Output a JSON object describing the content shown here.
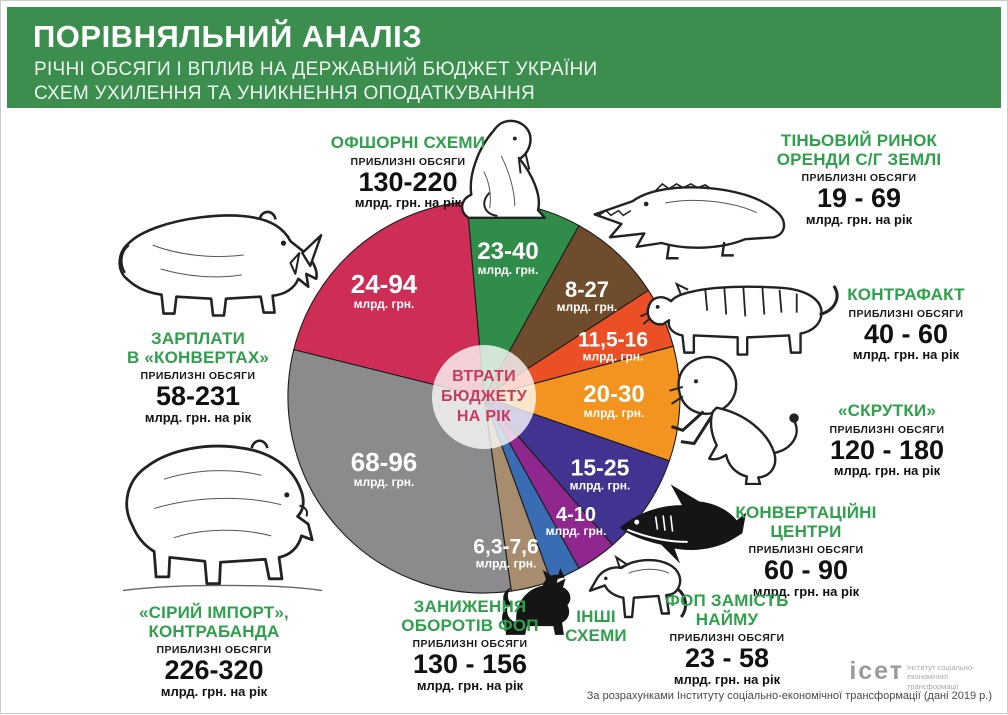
{
  "header": {
    "title": "ПОРІВНЯЛЬНИЙ АНАЛІЗ",
    "subtitle1": "РІЧНІ ОБСЯГИ І ВПЛИВ НА ДЕРЖАВНИЙ БЮДЖЕТ УКРАЇНИ",
    "subtitle2": "СХЕМ УХИЛЕННЯ ТА УНИКНЕННЯ ОПОДАТКУВАННЯ"
  },
  "pie": {
    "center_lines": [
      "ВТРАТИ",
      "БЮДЖЕТУ",
      "НА РІК"
    ]
  },
  "labels": {
    "approx_volumes": "ПРИБЛИЗНІ ОБСЯГИ",
    "per_year_unit": "млрд. грн. на рік",
    "slice_unit": "млрд. грн."
  },
  "chart_data": {
    "type": "pie",
    "title": "ВТРАТИ БЮДЖЕТУ НА РІК",
    "unit": "млрд. грн.",
    "legend_position": "around",
    "start_angle_deg": -5,
    "slices": [
      {
        "id": "offshore",
        "category_lines": [
          "ОФШОРНІ СХЕМИ"
        ],
        "volume": "130-220",
        "loss": "23-40",
        "color": "#2f8c49",
        "angle": 34,
        "animal": "walrus"
      },
      {
        "id": "land",
        "category_lines": [
          "ТІНЬОВИЙ РИНОК",
          "ОРЕНДИ С/Г ЗЕМЛІ"
        ],
        "volume": "19 - 69",
        "loss": "8-27",
        "color": "#6e4c2c",
        "angle": 28,
        "animal": "crocodile"
      },
      {
        "id": "counterfeit",
        "category_lines": [
          "КОНТРАФАКТ"
        ],
        "volume": "40 - 60",
        "loss": "11,5-16",
        "color": "#ea4f25",
        "angle": 18,
        "animal": "tiger"
      },
      {
        "id": "skrutky",
        "category_lines": [
          "«СКРУТКИ»"
        ],
        "volume": "120 - 180",
        "loss": "20-30",
        "color": "#f2941f",
        "angle": 34,
        "animal": "lion"
      },
      {
        "id": "conversion",
        "category_lines": [
          "КОНВЕРТАЦІЙНІ",
          "ЦЕНТРИ"
        ],
        "volume": "60 - 90",
        "loss": "15-25",
        "color": "#413490",
        "angle": 30,
        "animal": "shark"
      },
      {
        "id": "fop-hire",
        "category_lines": [
          "ФОП ЗАМІСТЬ",
          "НАЙМУ"
        ],
        "volume": "23 - 58",
        "loss": "4-10",
        "color": "#90278e",
        "angle": 12,
        "animal": "wolf"
      },
      {
        "id": "other",
        "category_lines": [
          "ІНШІ",
          "СХЕМИ"
        ],
        "volume": "",
        "loss": "",
        "color": "#3a6cb4",
        "angle": 9,
        "animal": ""
      },
      {
        "id": "understated-fop",
        "category_lines": [
          "ЗАНИЖЕННЯ",
          "ОБОРОТІВ ФОП"
        ],
        "volume": "130 - 156",
        "loss": "6,3-7,6",
        "color": "#a78c6e",
        "angle": 12,
        "animal": "cat"
      },
      {
        "id": "gray-import",
        "category_lines": [
          "«СІРИЙ ІМПОРТ»,",
          "КОНТРАБАНДА"
        ],
        "volume": "226-320",
        "loss": "68-96",
        "color": "#8b8b8d",
        "angle": 112,
        "animal": "bear"
      },
      {
        "id": "envelope-wages",
        "category_lines": [
          "ЗАРПЛАТИ",
          "В «КОНВЕРТАХ»"
        ],
        "volume": "58-231",
        "loss": "24-94",
        "color": "#ce2d55",
        "angle": 71,
        "animal": "rhino"
      }
    ]
  },
  "footer": {
    "logo_text": "ісет",
    "logo_caption_lines": [
      "Інститут соціально-",
      "економічної трансформації"
    ],
    "attribution": "За розрахунками Інституту соціально-економічної трансформації (дані 2019 р.)"
  }
}
